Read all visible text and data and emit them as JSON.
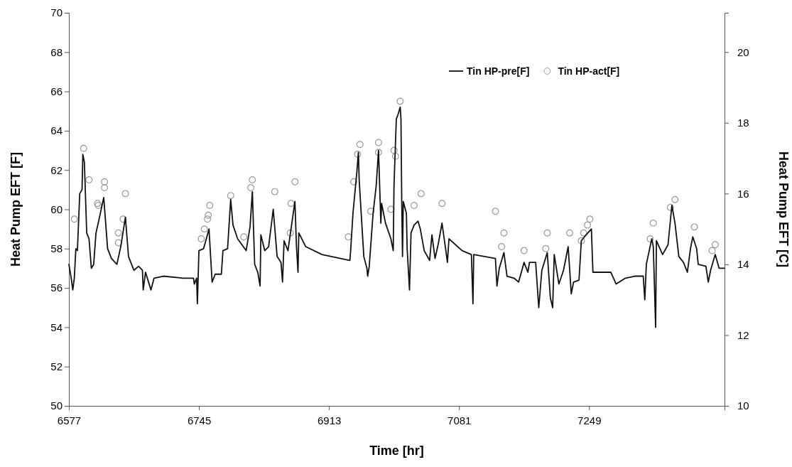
{
  "chart_data": {
    "type": "line",
    "xlabel": "Time [hr]",
    "ylabel": "Heat Pump EFT [F]",
    "y2label": "Heat Pump EFT [C]",
    "xlim": [
      6577,
      7424
    ],
    "xticks": [
      6577,
      6745,
      6913,
      7081,
      7249
    ],
    "ylim": [
      50,
      70
    ],
    "yticks": [
      50,
      52,
      54,
      56,
      58,
      60,
      62,
      64,
      66,
      68,
      70
    ],
    "y2lim": [
      10,
      21.11
    ],
    "y2ticks": [
      10,
      12,
      14,
      16,
      18,
      20
    ],
    "grid": false,
    "legend": "top right",
    "series": [
      {
        "name": "Tin HP-pre[F]",
        "color": "#111111",
        "line_style": "solid",
        "x": [
          6577,
          6580,
          6582,
          6584,
          6586,
          6588,
          6591,
          6594,
          6595,
          6597,
          6600,
          6603,
          6606,
          6609,
          6612,
          6616,
          6622,
          6627,
          6632,
          6639,
          6644,
          6650,
          6654,
          6661,
          6667,
          6672,
          6673,
          6676,
          6683,
          6687,
          6699,
          6724,
          6738,
          6739,
          6742,
          6743,
          6745,
          6751,
          6758,
          6762,
          6766,
          6774,
          6776,
          6782,
          6786,
          6789,
          6795,
          6806,
          6811,
          6814,
          6817,
          6821,
          6824,
          6825,
          6830,
          6835,
          6841,
          6846,
          6851,
          6853,
          6855,
          6860,
          6869,
          6871,
          6873,
          6874,
          6883,
          6904,
          6940,
          6941,
          6944,
          6949,
          6951,
          6952,
          6958,
          6962,
          6963,
          6965,
          6970,
          6974,
          6977,
          6980,
          6981,
          6986,
          6993,
          6996,
          6997,
          7000,
          7002,
          7005,
          7006,
          7007,
          7008,
          7009,
          7013,
          7014,
          7017,
          7019,
          7023,
          7028,
          7031,
          7036,
          7043,
          7046,
          7050,
          7054,
          7059,
          7064,
          7066,
          7068,
          7085,
          7097,
          7099,
          7100,
          7128,
          7130,
          7133,
          7139,
          7143,
          7152,
          7158,
          7165,
          7170,
          7172,
          7180,
          7184,
          7188,
          7195,
          7199,
          7202,
          7204,
          7210,
          7216,
          7222,
          7226,
          7229,
          7236,
          7239,
          7243,
          7252,
          7254,
          7265,
          7277,
          7284,
          7296,
          7308,
          7319,
          7321,
          7323,
          7330,
          7332,
          7335,
          7336,
          7344,
          7351,
          7356,
          7360,
          7365,
          7371,
          7376,
          7380,
          7383,
          7388,
          7390,
          7400,
          7403,
          7406,
          7412,
          7417,
          7424
        ],
        "values": [
          57.2,
          56.5,
          55.9,
          56.5,
          58.0,
          57.9,
          60.8,
          61.0,
          62.8,
          62.4,
          58.8,
          58.5,
          57.0,
          57.2,
          58.8,
          59.5,
          60.6,
          58.0,
          57.5,
          57.2,
          58.1,
          59.6,
          57.6,
          56.9,
          57.1,
          56.9,
          55.9,
          56.8,
          55.9,
          56.5,
          56.6,
          56.5,
          56.5,
          56.2,
          56.5,
          55.2,
          57.9,
          58.0,
          59.0,
          56.3,
          56.7,
          56.7,
          57.9,
          58.0,
          60.5,
          59.2,
          58.5,
          57.9,
          59.1,
          60.9,
          57.2,
          56.8,
          56.1,
          58.7,
          57.9,
          58.1,
          60.0,
          57.6,
          57.3,
          56.3,
          58.4,
          57.9,
          60.4,
          58.1,
          56.8,
          58.8,
          58.1,
          57.7,
          57.4,
          57.9,
          59.8,
          61.9,
          62.9,
          61.5,
          57.6,
          57.0,
          56.6,
          57.1,
          59.8,
          61.2,
          63.0,
          59.3,
          60.3,
          59.3,
          58.5,
          57.9,
          61.2,
          64.6,
          64.8,
          65.2,
          64.6,
          60.4,
          57.6,
          60.4,
          59.8,
          58.0,
          55.9,
          58.8,
          59.2,
          59.4,
          59.0,
          57.9,
          57.4,
          58.7,
          57.5,
          58.2,
          59.3,
          57.9,
          57.3,
          58.5,
          57.9,
          57.7,
          55.2,
          57.7,
          57.5,
          56.1,
          57.0,
          57.8,
          56.6,
          56.5,
          56.3,
          57.3,
          56.8,
          57.3,
          57.3,
          55.0,
          56.9,
          57.8,
          55.5,
          55.0,
          57.7,
          56.2,
          56.9,
          58.1,
          55.7,
          56.3,
          56.4,
          58.4,
          58.6,
          59.0,
          56.8,
          56.8,
          56.8,
          56.2,
          56.5,
          56.6,
          56.6,
          55.4,
          57.2,
          58.5,
          58.1,
          54.0,
          58.4,
          57.7,
          58.2,
          60.2,
          59.3,
          57.6,
          57.3,
          56.8,
          58.0,
          58.6,
          58.0,
          57.2,
          57.1,
          56.3,
          56.9,
          57.7,
          57.0,
          57.0
        ]
      },
      {
        "name": "Tin HP-act[F]",
        "type": "scatter",
        "marker": "circle",
        "color": "#999999",
        "x": [
          6596,
          6584,
          6603,
          6614,
          6615,
          6623,
          6623,
          6641,
          6641,
          6647,
          6650,
          6748,
          6752,
          6756,
          6757,
          6759,
          6786,
          6803,
          6812,
          6814,
          6843,
          6863,
          6864,
          6869,
          6938,
          6945,
          6950,
          6953,
          6967,
          6977,
          6977,
          6993,
          6999,
          6997,
          7005,
          7023,
          7032,
          7059,
          7128,
          7136,
          7139,
          7165,
          7193,
          7195,
          7224,
          7239,
          7242,
          7247,
          7250,
          7328,
          7332,
          7354,
          7360,
          7385,
          7408,
          7412
        ],
        "values": [
          63.1,
          59.5,
          61.5,
          60.3,
          60.2,
          61.4,
          61.1,
          58.8,
          58.3,
          59.5,
          60.8,
          58.5,
          59.0,
          59.5,
          59.7,
          60.2,
          60.7,
          58.6,
          61.1,
          61.5,
          60.9,
          58.8,
          60.3,
          61.4,
          58.6,
          61.4,
          62.8,
          63.3,
          59.9,
          62.9,
          63.4,
          60.0,
          62.7,
          63.0,
          65.5,
          60.2,
          60.8,
          60.3,
          59.9,
          58.1,
          58.8,
          57.9,
          58.0,
          58.8,
          58.8,
          58.4,
          58.8,
          59.2,
          59.5,
          58.5,
          59.3,
          60.1,
          60.5,
          59.1,
          57.9,
          58.2
        ]
      }
    ]
  }
}
